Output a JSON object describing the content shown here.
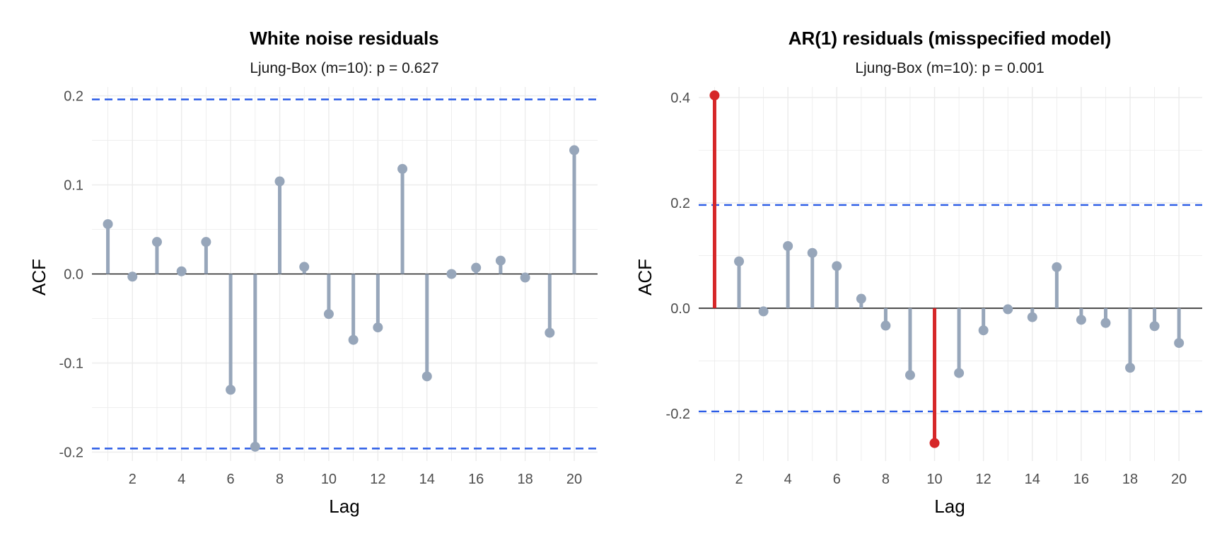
{
  "colors": {
    "stem": "#97a6ba",
    "significant": "#d62728",
    "bound": "#2b5ce6",
    "zero": "#000000",
    "grid": "#ebebeb"
  },
  "chart_data": [
    {
      "type": "lollipop",
      "title": "White noise residuals",
      "subtitle": "Ljung-Box (m=10): p = 0.627",
      "xlabel": "Lag",
      "ylabel": "ACF",
      "xlim": [
        0.35,
        20.95
      ],
      "ylim": [
        -0.21,
        0.21
      ],
      "xticks": [
        2,
        4,
        6,
        8,
        10,
        12,
        14,
        16,
        18,
        20
      ],
      "xtick_labels": [
        "2",
        "4",
        "6",
        "8",
        "10",
        "12",
        "14",
        "16",
        "18",
        "20"
      ],
      "yticks": [
        -0.2,
        -0.1,
        0.0,
        0.1,
        0.2
      ],
      "ytick_labels": [
        "-0.2",
        "-0.1",
        "0.0",
        "0.1",
        "0.2"
      ],
      "confidence_bound": 0.196,
      "lags": [
        1,
        2,
        3,
        4,
        5,
        6,
        7,
        8,
        9,
        10,
        11,
        12,
        13,
        14,
        15,
        16,
        17,
        18,
        19,
        20
      ],
      "values": [
        0.056,
        -0.003,
        0.036,
        0.003,
        0.036,
        -0.13,
        -0.194,
        0.104,
        0.008,
        -0.045,
        -0.074,
        -0.06,
        0.118,
        -0.115,
        0.0,
        0.007,
        0.015,
        -0.004,
        -0.066,
        0.139
      ],
      "significant": [
        false,
        false,
        false,
        false,
        false,
        false,
        false,
        false,
        false,
        false,
        false,
        false,
        false,
        false,
        false,
        false,
        false,
        false,
        false,
        false
      ],
      "grid": true
    },
    {
      "type": "lollipop",
      "title": "AR(1) residuals (misspecified model)",
      "subtitle": "Ljung-Box (m=10): p = 0.001",
      "xlabel": "Lag",
      "ylabel": "ACF",
      "xlim": [
        0.35,
        20.95
      ],
      "ylim": [
        -0.29,
        0.42
      ],
      "xticks": [
        2,
        4,
        6,
        8,
        10,
        12,
        14,
        16,
        18,
        20
      ],
      "xtick_labels": [
        "2",
        "4",
        "6",
        "8",
        "10",
        "12",
        "14",
        "16",
        "18",
        "20"
      ],
      "yticks": [
        -0.2,
        0.0,
        0.2,
        0.4
      ],
      "ytick_labels": [
        "-0.2",
        "0.0",
        "0.2",
        "0.4"
      ],
      "confidence_bound": 0.196,
      "lags": [
        1,
        2,
        3,
        4,
        5,
        6,
        7,
        8,
        9,
        10,
        11,
        12,
        13,
        14,
        15,
        16,
        17,
        18,
        19,
        20
      ],
      "values": [
        0.404,
        0.089,
        -0.006,
        0.118,
        0.105,
        0.08,
        0.018,
        -0.033,
        -0.127,
        -0.256,
        -0.123,
        -0.042,
        -0.002,
        -0.017,
        0.078,
        -0.022,
        -0.028,
        -0.113,
        -0.034,
        -0.066
      ],
      "significant": [
        true,
        false,
        false,
        false,
        false,
        false,
        false,
        false,
        false,
        true,
        false,
        false,
        false,
        false,
        false,
        false,
        false,
        false,
        false,
        false
      ],
      "grid": true
    }
  ]
}
